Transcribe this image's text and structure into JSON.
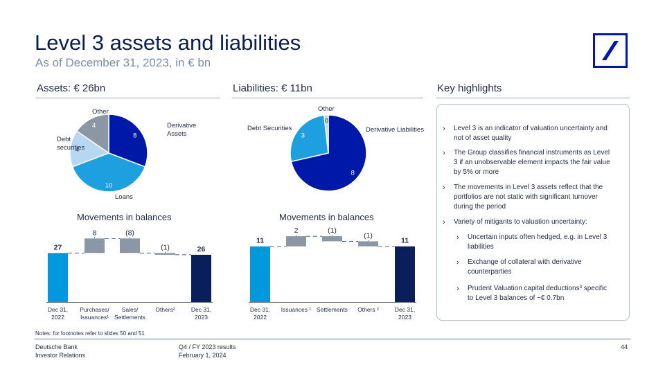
{
  "header": {
    "title": "Level 3 assets and liabilities",
    "subtitle": "As of December 31, 2023, in € bn"
  },
  "sections": {
    "assets": "Assets: € 26bn",
    "liabilities": "Liabilities: € 11bn",
    "highlights": "Key highlights"
  },
  "movements_title_assets": "Movements in balances",
  "movements_title_liabilities": "Movements in balances",
  "chart_data": [
    {
      "type": "pie",
      "slices": [
        {
          "label": "Derivative Assets",
          "value": 8,
          "value_label": "8",
          "color": "#0018a8"
        },
        {
          "label": "Loans",
          "value": 10,
          "value_label": "10",
          "color": "#1e9fe0"
        },
        {
          "label": "Debt securities",
          "value": 4,
          "value_label": "4",
          "color": "#b6d6f2"
        },
        {
          "label": "Other",
          "value": 4,
          "value_label": "4",
          "color": "#8c97a6"
        }
      ]
    },
    {
      "type": "pie",
      "slices": [
        {
          "label": "Derivative Liabilities",
          "value": 8,
          "value_label": "8",
          "color": "#0018a8"
        },
        {
          "label": "Debt Securities",
          "value": 3,
          "value_label": "3",
          "color": "#1e9fe0"
        },
        {
          "label": "Other",
          "value": 0.2,
          "value_label": "0",
          "color": "#b6d6f2"
        }
      ]
    },
    {
      "type": "bar",
      "subtype": "waterfall",
      "categories": [
        "Dec 31, 2022",
        "Purchases/ Issuances¹",
        "Sales/ Settlements",
        "Others²",
        "Dec 31, 2023"
      ],
      "values": [
        27,
        8,
        -8,
        -1,
        26
      ],
      "value_labels": [
        "27",
        "8",
        "(8)",
        "(1)",
        "26"
      ],
      "kinds": [
        "start",
        "change",
        "change",
        "change",
        "end"
      ]
    },
    {
      "type": "bar",
      "subtype": "waterfall",
      "categories": [
        "Dec 31, 2022",
        "Issuances ¹",
        "Settlements",
        "Others ²",
        "Dec 31, 2023"
      ],
      "values": [
        11,
        2,
        -1,
        -1,
        11
      ],
      "value_labels": [
        "11",
        "2",
        "(1)",
        "(1)",
        "11"
      ],
      "kinds": [
        "start",
        "change",
        "change",
        "change",
        "end"
      ]
    }
  ],
  "colors": {
    "brand": "#0018a8",
    "start_bar": "#0099dd",
    "end_bar": "#0a1e5c",
    "change_bar": "#8c97a6"
  },
  "highlights": [
    {
      "text": "Level 3 is an indicator of valuation uncertainty and not of asset quality",
      "level": 1
    },
    {
      "text": "The Group classifies financial instruments as Level 3 if an unobservable element impacts the fair value by 5% or more",
      "level": 1
    },
    {
      "text": "The movements in Level 3 assets reflect that the portfolios are not static with significant turnover during the period",
      "level": 1
    },
    {
      "text": "Variety of mitigants to valuation uncertainty:",
      "level": 1
    },
    {
      "text": "Uncertain inputs often hedged, e.g. in Level 3 liabilities",
      "level": 2
    },
    {
      "text": "Exchange of collateral with derivative counterparties",
      "level": 2
    },
    {
      "text": "Prudent Valuation capital deductions³ specific to Level 3 balances of ~€ 0.7bn",
      "level": 2
    }
  ],
  "notes": "Notes: for footnotes refer to slides 50 and 51",
  "footer": {
    "company": "Deutsche Bank",
    "department": "Investor Relations",
    "report": "Q4 / FY 2023 results",
    "date": "February 1, 2024",
    "page": "44"
  }
}
